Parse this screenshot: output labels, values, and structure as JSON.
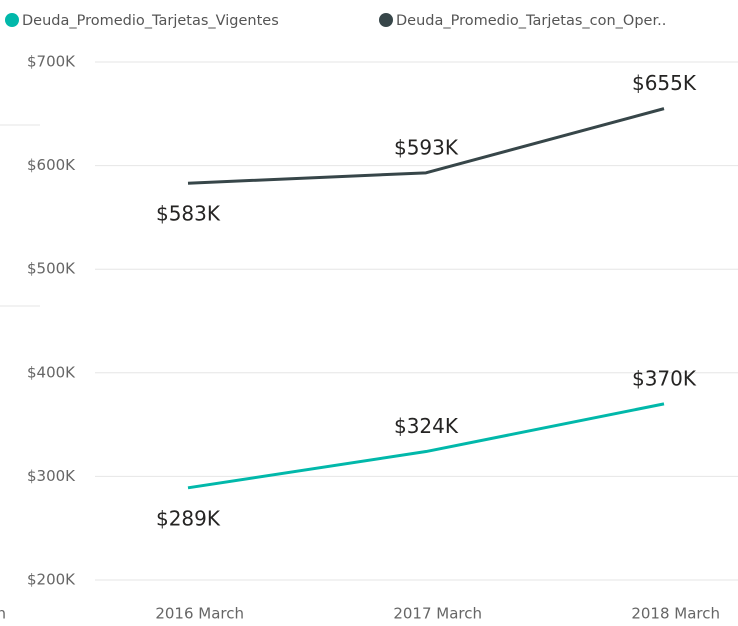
{
  "chart_data": {
    "type": "line",
    "categories": [
      "rch",
      "2016 March",
      "2017 March",
      "2018 March"
    ],
    "series": [
      {
        "name": "Deuda_Promedio_Tarjetas_Vigentes",
        "color": "#01B8AA",
        "values": [
          null,
          289000,
          324000,
          370000
        ],
        "value_labels": [
          null,
          "$289K",
          "$324K",
          "$370K"
        ]
      },
      {
        "name": "Deuda_Promedio_Tarjetas_con_Oper..",
        "color": "#374649",
        "values": [
          null,
          583000,
          593000,
          655000
        ],
        "value_labels": [
          null,
          "$583K",
          "$593K",
          "$655K"
        ]
      }
    ],
    "ylim": [
      200000,
      700000
    ],
    "yticks": [
      {
        "value": 200000,
        "label": "$200K"
      },
      {
        "value": 300000,
        "label": "$300K"
      },
      {
        "value": 400000,
        "label": "$400K"
      },
      {
        "value": 500000,
        "label": "$500K"
      },
      {
        "value": 600000,
        "label": "$600K"
      },
      {
        "value": 700000,
        "label": "$700K"
      }
    ],
    "grid": true,
    "legend": "top-left"
  }
}
